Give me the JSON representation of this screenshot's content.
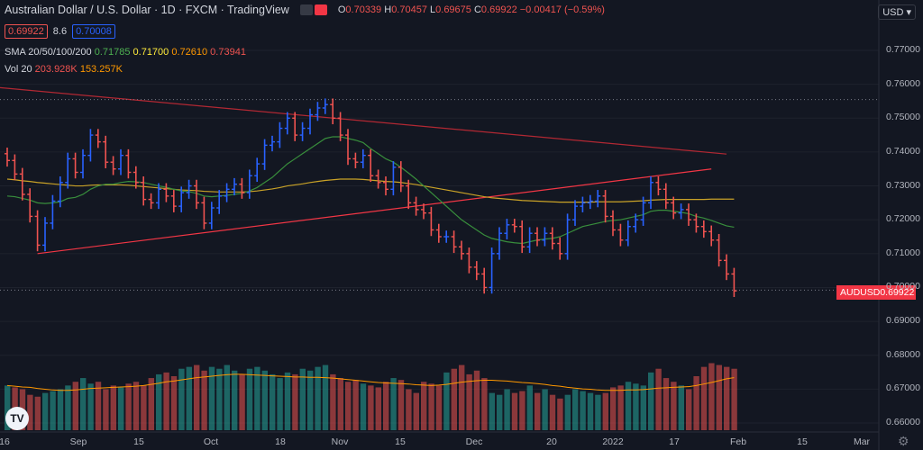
{
  "header": {
    "title": "Australian Dollar / U.S. Dollar · 1D · FXCM · TradingView",
    "ohlc": {
      "o_label": "O",
      "o": "0.70339",
      "h_label": "H",
      "h": "0.70457",
      "l_label": "L",
      "l": "0.69675",
      "c_label": "C",
      "c": "0.69922",
      "change": "−0.00417 (−0.59%)"
    }
  },
  "quote": {
    "sell": "0.69922",
    "spread": "8.6",
    "buy": "0.70008"
  },
  "indicators": {
    "sma_label": "SMA 20/50/100/200",
    "sma_values": [
      {
        "v": "0.71785",
        "color": "#4caf50"
      },
      {
        "v": "0.71700",
        "color": "#ffeb3b"
      },
      {
        "v": "0.72610",
        "color": "#ff9800"
      },
      {
        "v": "0.73941",
        "color": "#ef5350"
      }
    ],
    "vol_label": "Vol 20",
    "vol_values": [
      {
        "v": "203.928K",
        "color": "#ef5350"
      },
      {
        "v": "153.257K",
        "color": "#ff9800"
      }
    ]
  },
  "currency": "USD",
  "price_tag": {
    "symbol": "AUDUSD",
    "value": "0.69922"
  },
  "colors": {
    "up": "#2962ff",
    "down": "#ef5350",
    "vol_up": "#26a69a",
    "vol_down": "#ef5350",
    "bg": "#131722"
  },
  "chart_data": {
    "type": "ohlc_bar",
    "symbol": "AUDUSD",
    "timeframe": "1D",
    "y_axis": {
      "range": [
        0.66,
        0.78
      ],
      "ticks": [
        "0.77000",
        "0.76000",
        "0.75000",
        "0.74000",
        "0.73000",
        "0.72000",
        "0.71000",
        "0.70000",
        "0.69000",
        "0.68000",
        "0.67000",
        "0.66000"
      ]
    },
    "x_axis": {
      "ticks": [
        "16",
        "Sep",
        "15",
        "Oct",
        "18",
        "Nov",
        "15",
        "Dec",
        "20",
        "2022",
        "17",
        "Feb",
        "15",
        "Mar"
      ]
    },
    "closes": [
      0.7375,
      0.7335,
      0.7275,
      0.721,
      0.7125,
      0.719,
      0.7255,
      0.731,
      0.738,
      0.734,
      0.739,
      0.745,
      0.743,
      0.737,
      0.735,
      0.739,
      0.734,
      0.731,
      0.726,
      0.725,
      0.729,
      0.727,
      0.724,
      0.728,
      0.73,
      0.725,
      0.719,
      0.7235,
      0.727,
      0.729,
      0.7305,
      0.728,
      0.733,
      0.7365,
      0.742,
      0.743,
      0.747,
      0.75,
      0.745,
      0.747,
      0.751,
      0.753,
      0.754,
      0.75,
      0.745,
      0.738,
      0.737,
      0.739,
      0.733,
      0.731,
      0.729,
      0.7355,
      0.73,
      0.725,
      0.723,
      0.722,
      0.717,
      0.715,
      0.715,
      0.712,
      0.71,
      0.706,
      0.704,
      0.7,
      0.71,
      0.716,
      0.7185,
      0.718,
      0.712,
      0.716,
      0.714,
      0.716,
      0.713,
      0.71,
      0.72,
      0.724,
      0.725,
      0.7255,
      0.727,
      0.721,
      0.717,
      0.714,
      0.718,
      0.72,
      0.725,
      0.731,
      0.729,
      0.725,
      0.722,
      0.723,
      0.72,
      0.718,
      0.7165,
      0.714,
      0.708,
      0.704,
      0.699
    ],
    "sma_20": [
      0.727,
      0.7268,
      0.7263,
      0.7258,
      0.725,
      0.7248,
      0.725,
      0.7253,
      0.7263,
      0.7266,
      0.7275,
      0.729,
      0.73,
      0.7305,
      0.7305,
      0.731,
      0.7313,
      0.7312,
      0.731,
      0.7305,
      0.73,
      0.7296,
      0.729,
      0.7285,
      0.7283,
      0.7278,
      0.727,
      0.7268,
      0.727,
      0.7272,
      0.7275,
      0.7278,
      0.7285,
      0.7295,
      0.731,
      0.7325,
      0.7345,
      0.7365,
      0.738,
      0.7395,
      0.741,
      0.7425,
      0.744,
      0.7445,
      0.7445,
      0.744,
      0.7435,
      0.7428,
      0.741,
      0.7395,
      0.738,
      0.737,
      0.7355,
      0.7338,
      0.732,
      0.73,
      0.728,
      0.726,
      0.724,
      0.722,
      0.72,
      0.7185,
      0.717,
      0.7155,
      0.7145,
      0.714,
      0.7135,
      0.7132,
      0.713,
      0.7135,
      0.714,
      0.7143,
      0.7145,
      0.715,
      0.716,
      0.717,
      0.718,
      0.7185,
      0.719,
      0.7195,
      0.7198,
      0.72,
      0.7205,
      0.721,
      0.7215,
      0.7225,
      0.7228,
      0.7228,
      0.7225,
      0.7222,
      0.7218,
      0.721,
      0.7205,
      0.7198,
      0.719,
      0.7182,
      0.7178
    ],
    "sma_100": [
      0.732,
      0.7318,
      0.7315,
      0.7313,
      0.731,
      0.7308,
      0.7306,
      0.7304,
      0.7302,
      0.73,
      0.73,
      0.7302,
      0.7303,
      0.7303,
      0.7303,
      0.7303,
      0.7302,
      0.73,
      0.7298,
      0.7296,
      0.7294,
      0.7292,
      0.729,
      0.7288,
      0.7287,
      0.7286,
      0.7284,
      0.7283,
      0.7282,
      0.7282,
      0.7282,
      0.7282,
      0.7283,
      0.7285,
      0.7288,
      0.7291,
      0.7295,
      0.73,
      0.7303,
      0.7306,
      0.731,
      0.7313,
      0.7316,
      0.7318,
      0.732,
      0.732,
      0.732,
      0.7319,
      0.7317,
      0.7315,
      0.7313,
      0.7312,
      0.731,
      0.7307,
      0.7304,
      0.73,
      0.7296,
      0.7292,
      0.7288,
      0.7284,
      0.728,
      0.7276,
      0.7272,
      0.7268,
      0.7265,
      0.7263,
      0.7261,
      0.7259,
      0.7257,
      0.7256,
      0.7255,
      0.7254,
      0.7253,
      0.7252,
      0.7252,
      0.7252,
      0.7252,
      0.7252,
      0.7253,
      0.7253,
      0.7253,
      0.7253,
      0.7254,
      0.7255,
      0.7256,
      0.7258,
      0.7259,
      0.726,
      0.726,
      0.726,
      0.726,
      0.726,
      0.726,
      0.7261,
      0.7261,
      0.7261,
      0.7261
    ],
    "sma_200_endpoints": [
      0.759,
      0.7394
    ],
    "volume_k": [
      120,
      115,
      110,
      95,
      90,
      100,
      105,
      110,
      120,
      130,
      140,
      125,
      130,
      110,
      120,
      115,
      125,
      130,
      120,
      140,
      150,
      155,
      145,
      165,
      170,
      175,
      160,
      170,
      165,
      175,
      160,
      150,
      165,
      170,
      160,
      150,
      140,
      155,
      150,
      165,
      160,
      170,
      175,
      150,
      140,
      130,
      135,
      125,
      120,
      115,
      130,
      140,
      135,
      110,
      100,
      130,
      125,
      120,
      155,
      165,
      175,
      150,
      160,
      140,
      100,
      95,
      110,
      100,
      105,
      120,
      100,
      110,
      95,
      85,
      95,
      110,
      105,
      100,
      95,
      100,
      115,
      120,
      130,
      125,
      120,
      155,
      165,
      140,
      130,
      120,
      110,
      145,
      170,
      180,
      175,
      170,
      165
    ],
    "vol_sma_k": [
      120,
      118,
      116,
      115,
      112,
      110,
      108,
      107,
      107,
      108,
      110,
      112,
      113,
      114,
      115,
      116,
      117,
      118,
      120,
      123,
      126,
      130,
      132,
      135,
      138,
      141,
      143,
      145,
      147,
      149,
      150,
      150,
      149,
      148,
      147,
      146,
      145,
      144,
      143,
      143,
      142,
      142,
      141,
      140,
      138,
      136,
      134,
      132,
      130,
      128,
      127,
      126,
      125,
      124,
      122,
      121,
      120,
      121,
      123,
      126,
      129,
      131,
      133,
      134,
      134,
      133,
      132,
      130,
      128,
      127,
      125,
      123,
      120,
      118,
      115,
      113,
      111,
      110,
      108,
      107,
      107,
      107,
      108,
      108,
      109,
      111,
      113,
      114,
      115,
      116,
      117,
      120,
      124,
      128,
      133,
      138,
      141
    ]
  }
}
